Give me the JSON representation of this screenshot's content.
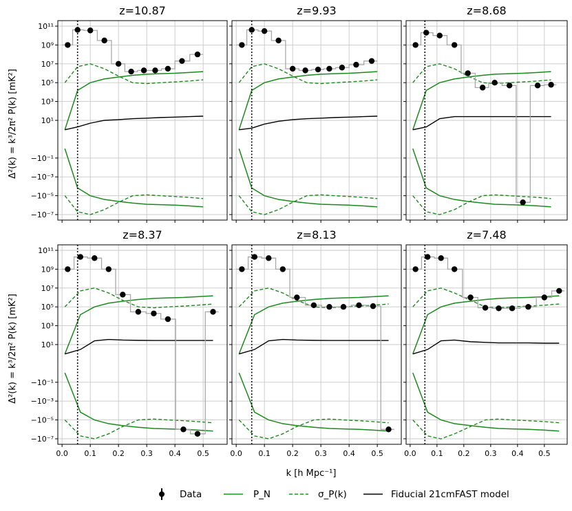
{
  "chart_data": {
    "type": "line",
    "xlabel": "k [h Mpc⁻¹]",
    "ylabel": "Δ²(k) = k³/2π² P(k) [mK²]",
    "y_scale": "symlog",
    "y_ticks": [
      "10¹¹",
      "10⁹",
      "10⁷",
      "10⁵",
      "10³",
      "10¹",
      "−10⁻¹",
      "−10⁻³",
      "−10⁻⁵",
      "−10⁻⁷"
    ],
    "x_ticks": [
      "0.0",
      "0.1",
      "0.2",
      "0.3",
      "0.4",
      "0.5"
    ],
    "xlim": [
      -0.015,
      0.585
    ],
    "grid": true,
    "reference_line_x": 0.055,
    "legend": {
      "placement": "bottom-center",
      "entries": [
        "Data",
        "P_N",
        "σ_P(k)",
        "Fiducial 21cmFAST model"
      ]
    },
    "panels": [
      {
        "title": "z=10.87",
        "data": [
          {
            "k": 0.02,
            "y": "1e9"
          },
          {
            "k": 0.055,
            "y": "4e10"
          },
          {
            "k": 0.1,
            "y": "3.5e10"
          },
          {
            "k": 0.15,
            "y": "3e9"
          },
          {
            "k": 0.2,
            "y": "1e7"
          },
          {
            "k": 0.245,
            "y": "1.5e6"
          },
          {
            "k": 0.29,
            "y": "2e6"
          },
          {
            "k": 0.33,
            "y": "2e6"
          },
          {
            "k": 0.375,
            "y": "3e6"
          },
          {
            "k": 0.425,
            "y": "2e7"
          },
          {
            "k": 0.48,
            "y": "1e8"
          }
        ],
        "noise_pn": {
          "k": [
            0.01,
            0.055,
            0.1,
            0.15,
            0.2,
            0.25,
            0.3,
            0.35,
            0.4,
            0.45,
            0.5
          ],
          "y": [
            "1e0",
            "1.5e4",
            "1e5",
            "2.5e5",
            "4e5",
            "6e5",
            "8e5",
            "9e5",
            "1e6",
            "1.2e6",
            "1.5e6"
          ]
        },
        "sigma_pk": {
          "k": [
            0.01,
            0.055,
            0.1,
            0.15,
            0.2,
            0.25,
            0.3,
            0.35,
            0.4,
            0.45,
            0.5
          ],
          "y": [
            "1e5",
            "5e6",
            "1e7",
            "3e6",
            "5e5",
            "1e5",
            "8e4",
            "1e5",
            "1.2e5",
            "1.5e5",
            "2e5"
          ]
        },
        "model": {
          "k": [
            0.01,
            0.055,
            0.1,
            0.15,
            0.2,
            0.25,
            0.3,
            0.35,
            0.4,
            0.45,
            0.5
          ],
          "y": [
            "1e0",
            "2",
            "5",
            "10",
            "12",
            "15",
            "17",
            "20",
            "22",
            "25",
            "28"
          ]
        }
      },
      {
        "title": "z=9.93",
        "data": [
          {
            "k": 0.02,
            "y": "1e9"
          },
          {
            "k": 0.055,
            "y": "4e10"
          },
          {
            "k": 0.1,
            "y": "3e10"
          },
          {
            "k": 0.15,
            "y": "3e9"
          },
          {
            "k": 0.2,
            "y": "3e6"
          },
          {
            "k": 0.245,
            "y": "2e6"
          },
          {
            "k": 0.29,
            "y": "2.5e6"
          },
          {
            "k": 0.33,
            "y": "3e6"
          },
          {
            "k": 0.375,
            "y": "4e6"
          },
          {
            "k": 0.425,
            "y": "8e6"
          },
          {
            "k": 0.48,
            "y": "2e7"
          }
        ],
        "noise_pn": {
          "k": [
            0.01,
            0.055,
            0.1,
            0.15,
            0.2,
            0.25,
            0.3,
            0.35,
            0.4,
            0.45,
            0.5
          ],
          "y": [
            "1e0",
            "1.5e4",
            "1e5",
            "2.5e5",
            "4e5",
            "6e5",
            "8e5",
            "9e5",
            "1e6",
            "1.2e6",
            "1.5e6"
          ]
        },
        "sigma_pk": {
          "k": [
            0.01,
            0.055,
            0.1,
            0.15,
            0.2,
            0.25,
            0.3,
            0.35,
            0.4,
            0.45,
            0.5
          ],
          "y": [
            "1e5",
            "5e6",
            "1e7",
            "3e6",
            "5e5",
            "1e5",
            "8e4",
            "1e5",
            "1.2e5",
            "1.5e5",
            "2e5"
          ]
        },
        "model": {
          "k": [
            0.01,
            0.055,
            0.1,
            0.15,
            0.2,
            0.25,
            0.3,
            0.35,
            0.4,
            0.45,
            0.5
          ],
          "y": [
            "1e0",
            "1.5",
            "4",
            "8",
            "12",
            "15",
            "17",
            "20",
            "22",
            "25",
            "28"
          ]
        }
      },
      {
        "title": "z=8.68",
        "data": [
          {
            "k": 0.02,
            "y": "1e9"
          },
          {
            "k": 0.06,
            "y": "2e10"
          },
          {
            "k": 0.11,
            "y": "1e10"
          },
          {
            "k": 0.165,
            "y": "1e9"
          },
          {
            "k": 0.215,
            "y": "1e6"
          },
          {
            "k": 0.27,
            "y": "3e4"
          },
          {
            "k": 0.315,
            "y": "1e5"
          },
          {
            "k": 0.37,
            "y": "5e4"
          },
          {
            "k": 0.42,
            "y": "-5e5"
          },
          {
            "k": 0.475,
            "y": "5e4"
          },
          {
            "k": 0.525,
            "y": "6e4"
          }
        ],
        "noise_pn": {
          "k": [
            0.01,
            0.06,
            0.11,
            0.165,
            0.215,
            0.27,
            0.315,
            0.37,
            0.42,
            0.475,
            0.525
          ],
          "y": [
            "1e0",
            "1.5e4",
            "1e5",
            "2.5e5",
            "4e5",
            "6e5",
            "8e5",
            "9e5",
            "1e6",
            "1.2e6",
            "1.5e6"
          ]
        },
        "sigma_pk": {
          "k": [
            0.01,
            0.06,
            0.11,
            0.165,
            0.215,
            0.27,
            0.315,
            0.37,
            0.42,
            0.475,
            0.525
          ],
          "y": [
            "1e5",
            "5e6",
            "1e7",
            "3e6",
            "5e5",
            "1e5",
            "8e4",
            "1e5",
            "1.2e5",
            "1.5e5",
            "2e5"
          ]
        },
        "model": {
          "k": [
            0.01,
            0.06,
            0.11,
            0.165,
            0.215,
            0.27,
            0.315,
            0.37,
            0.42,
            0.475,
            0.525
          ],
          "y": [
            "1e0",
            "2",
            "15",
            "25",
            "25",
            "25",
            "25",
            "25",
            "25",
            "25",
            "25"
          ]
        }
      },
      {
        "title": "z=8.37",
        "data": [
          {
            "k": 0.02,
            "y": "1e9"
          },
          {
            "k": 0.065,
            "y": "2e10"
          },
          {
            "k": 0.115,
            "y": "1.5e10"
          },
          {
            "k": 0.165,
            "y": "1e9"
          },
          {
            "k": 0.215,
            "y": "2e6"
          },
          {
            "k": 0.27,
            "y": "3e4"
          },
          {
            "k": 0.325,
            "y": "2e4"
          },
          {
            "k": 0.375,
            "y": "5e3"
          },
          {
            "k": 0.43,
            "y": "-1e6"
          },
          {
            "k": 0.48,
            "y": "-3e6"
          },
          {
            "k": 0.535,
            "y": "3e4"
          }
        ],
        "noise_pn": {
          "k": [
            0.01,
            0.065,
            0.115,
            0.165,
            0.215,
            0.27,
            0.325,
            0.375,
            0.43,
            0.48,
            0.535
          ],
          "y": [
            "1e0",
            "1.5e4",
            "1e5",
            "2.5e5",
            "4e5",
            "6e5",
            "8e5",
            "9e5",
            "1e6",
            "1.2e6",
            "1.5e6"
          ]
        },
        "sigma_pk": {
          "k": [
            0.01,
            0.065,
            0.115,
            0.165,
            0.215,
            0.27,
            0.325,
            0.375,
            0.43,
            0.48,
            0.535
          ],
          "y": [
            "1e5",
            "5e6",
            "1e7",
            "3e6",
            "5e5",
            "1e5",
            "8e4",
            "1e5",
            "1.2e5",
            "1.5e5",
            "2e5"
          ]
        },
        "model": {
          "k": [
            0.01,
            0.065,
            0.115,
            0.165,
            0.215,
            0.27,
            0.325,
            0.375,
            0.43,
            0.48,
            0.535
          ],
          "y": [
            "1e0",
            "3",
            "25",
            "35",
            "30",
            "28",
            "27",
            "27",
            "27",
            "27",
            "27"
          ]
        }
      },
      {
        "title": "z=8.13",
        "data": [
          {
            "k": 0.02,
            "y": "1e9"
          },
          {
            "k": 0.065,
            "y": "2e10"
          },
          {
            "k": 0.115,
            "y": "1.5e10"
          },
          {
            "k": 0.165,
            "y": "1e9"
          },
          {
            "k": 0.215,
            "y": "1e6"
          },
          {
            "k": 0.275,
            "y": "1.5e5"
          },
          {
            "k": 0.33,
            "y": "1e5"
          },
          {
            "k": 0.38,
            "y": "1e5"
          },
          {
            "k": 0.435,
            "y": "1.5e5"
          },
          {
            "k": 0.485,
            "y": "1.2e5"
          },
          {
            "k": 0.54,
            "y": "-1e6"
          }
        ],
        "noise_pn": {
          "k": [
            0.01,
            0.065,
            0.115,
            0.165,
            0.215,
            0.275,
            0.33,
            0.38,
            0.435,
            0.485,
            0.54
          ],
          "y": [
            "1e0",
            "1.5e4",
            "1e5",
            "2.5e5",
            "4e5",
            "6e5",
            "8e5",
            "9e5",
            "1e6",
            "1.2e6",
            "1.5e6"
          ]
        },
        "sigma_pk": {
          "k": [
            0.01,
            0.065,
            0.115,
            0.165,
            0.215,
            0.275,
            0.33,
            0.38,
            0.435,
            0.485,
            0.54
          ],
          "y": [
            "1e5",
            "5e6",
            "1e7",
            "3e6",
            "5e5",
            "1e5",
            "8e4",
            "1e5",
            "1.2e5",
            "1.5e5",
            "2e5"
          ]
        },
        "model": {
          "k": [
            0.01,
            0.065,
            0.115,
            0.165,
            0.215,
            0.275,
            0.33,
            0.38,
            0.435,
            0.485,
            0.54
          ],
          "y": [
            "1e0",
            "3",
            "25",
            "35",
            "30",
            "28",
            "27",
            "27",
            "27",
            "27",
            "27"
          ]
        }
      },
      {
        "title": "z=7.48",
        "data": [
          {
            "k": 0.02,
            "y": "1e9"
          },
          {
            "k": 0.065,
            "y": "2e10"
          },
          {
            "k": 0.115,
            "y": "1.5e10"
          },
          {
            "k": 0.165,
            "y": "1e9"
          },
          {
            "k": 0.225,
            "y": "1e6"
          },
          {
            "k": 0.28,
            "y": "8e4"
          },
          {
            "k": 0.33,
            "y": "7e4"
          },
          {
            "k": 0.38,
            "y": "7e4"
          },
          {
            "k": 0.44,
            "y": "1e5"
          },
          {
            "k": 0.5,
            "y": "1e6"
          },
          {
            "k": 0.555,
            "y": "5e6"
          }
        ],
        "noise_pn": {
          "k": [
            0.01,
            0.065,
            0.115,
            0.165,
            0.225,
            0.28,
            0.33,
            0.38,
            0.44,
            0.5,
            0.555
          ],
          "y": [
            "1e0",
            "1.5e4",
            "1e5",
            "2.5e5",
            "4e5",
            "6e5",
            "8e5",
            "9e5",
            "1e6",
            "1.2e6",
            "1.5e6"
          ]
        },
        "sigma_pk": {
          "k": [
            0.01,
            0.065,
            0.115,
            0.165,
            0.225,
            0.28,
            0.33,
            0.38,
            0.44,
            0.5,
            0.555
          ],
          "y": [
            "1e5",
            "5e6",
            "1e7",
            "3e6",
            "5e5",
            "1e5",
            "8e4",
            "1e5",
            "1.2e5",
            "1.5e5",
            "2e5"
          ]
        },
        "model": {
          "k": [
            0.01,
            0.065,
            0.115,
            0.165,
            0.225,
            0.28,
            0.33,
            0.38,
            0.44,
            0.5,
            0.555
          ],
          "y": [
            "1e0",
            "3",
            "25",
            "30",
            "20",
            "17",
            "15",
            "15",
            "15",
            "14",
            "14"
          ]
        }
      }
    ]
  }
}
